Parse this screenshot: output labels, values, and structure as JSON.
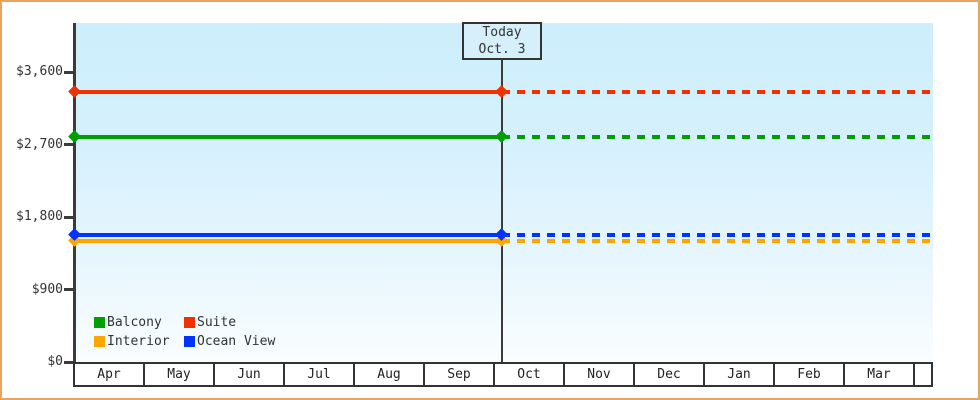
{
  "chart_data": {
    "type": "line",
    "title": "",
    "today_box": {
      "line1": "Today",
      "line2": "Oct. 3"
    },
    "x_axis": {
      "months": [
        "Apr",
        "May",
        "Jun",
        "Jul",
        "Aug",
        "Sep",
        "Oct",
        "Nov",
        "Dec",
        "Jan",
        "Feb",
        "Mar"
      ],
      "today_position": "Sep/Oct boundary"
    },
    "y_axis": {
      "ticks": [
        {
          "label": "$3,600",
          "value": 3600
        },
        {
          "label": "$2,700",
          "value": 2700
        },
        {
          "label": "$1,800",
          "value": 1800
        },
        {
          "label": "$900",
          "value": 900
        },
        {
          "label": "$0",
          "value": 0
        }
      ],
      "range": [
        0,
        4200
      ],
      "grid": false
    },
    "legend_position": "bottom-left inside plot",
    "series": [
      {
        "name": "Balcony",
        "color": "#009e00",
        "value": 2790,
        "past_style": "solid",
        "future_style": "dashed"
      },
      {
        "name": "Suite",
        "color": "#f13000",
        "value": 3350,
        "past_style": "solid",
        "future_style": "dashed"
      },
      {
        "name": "Interior",
        "color": "#ffa500",
        "value": 1500,
        "past_style": "solid",
        "future_style": "dashed"
      },
      {
        "name": "Ocean View",
        "color": "#0033ff",
        "value": 1580,
        "past_style": "solid",
        "future_style": "dashed"
      }
    ],
    "colors": {
      "frame_border": "#e9a55e",
      "axis": "#3b3b3b",
      "plot_bg_top": "#cdeefc",
      "plot_bg_bottom": "#f9fdff",
      "today_box_bg": "#d6f0fb",
      "text": "#333333"
    }
  }
}
